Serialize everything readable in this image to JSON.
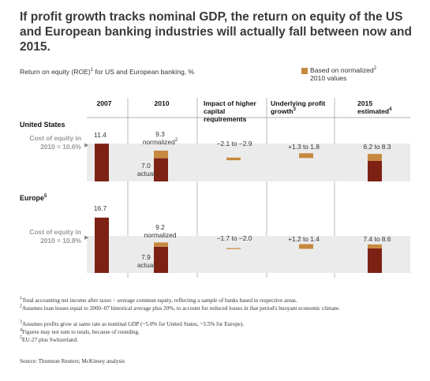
{
  "title": "If profit growth tracks nominal GDP, the return on equity of the US and European banking industries will actually fall between now and 2015.",
  "subtitle_main": "Return on equity (ROE)",
  "subtitle_sup": "1",
  "subtitle_rest": " for US and European banking, %",
  "legend": {
    "line1": "Based on normalized",
    "sup": "2",
    "line2": "2010 values"
  },
  "colors": {
    "actual": "#7d2115",
    "normalized": "#c7893f",
    "band": "#ebebeb",
    "divider": "#9a9a9a"
  },
  "columns": [
    {
      "label": "2007",
      "sup": ""
    },
    {
      "label": "2010",
      "sup": ""
    },
    {
      "label": "Impact of higher capital requirements",
      "sup": ""
    },
    {
      "label": "Underlying profit growth",
      "sup": "3"
    },
    {
      "label": "2015 estimated",
      "sup": "4"
    }
  ],
  "chart_data": {
    "type": "bar",
    "unit": "%",
    "regions": [
      {
        "name": "United States",
        "sup": "",
        "cost_of_equity_label": "Cost of equity in 2010 = 10.6%",
        "cost_of_equity": 10.6,
        "roe_2007": 11.4,
        "roe_2010_normalized": 9.3,
        "roe_2010_actual": 7.0,
        "capital_impact": [
          -2.9,
          -2.1
        ],
        "profit_growth": [
          1.3,
          1.8
        ],
        "roe_2015": [
          6.2,
          8.3
        ],
        "labels": {
          "y2007": "11.4",
          "normalized_value": "9.3",
          "normalized_word": "normalized",
          "normalized_sup": "2",
          "actual_value": "7.0",
          "actual_word": "actual",
          "capital": "−2.1 to −2.9",
          "growth": "+1.3 to 1.8",
          "estimated": "6.2 to 8.3"
        }
      },
      {
        "name": "Europe",
        "sup": "5",
        "cost_of_equity_label": "Cost of equity in 2010 = 10.8%",
        "cost_of_equity": 10.8,
        "roe_2007": 16.7,
        "roe_2010_normalized": 9.2,
        "roe_2010_actual": 7.9,
        "capital_impact": [
          -2.0,
          -1.7
        ],
        "profit_growth": [
          1.2,
          1.4
        ],
        "roe_2015": [
          7.4,
          8.6
        ],
        "labels": {
          "y2007": "16.7",
          "normalized_value": "9.2",
          "normalized_word": "normalized",
          "normalized_sup": "",
          "actual_value": "7.9",
          "actual_word": "actual",
          "capital": "−1.7 to −2.0",
          "growth": "+1.2 to 1.4",
          "estimated": "7.4 to 8.6"
        }
      }
    ]
  },
  "footnotes": [
    {
      "num": "1",
      "text": "Total accounting net income after taxes ÷ average common equity, reflecting a sample of banks based in respective areas."
    },
    {
      "num": "2",
      "text": "Assumes loan losses equal to 2000–07 historical average plus 20%, to account for reduced losses in that period's buoyant economic climate."
    },
    {
      "num": "3",
      "text": "Assumes profits grow at same rate as nominal GDP (~5.0% for United States, ~3.5% for Europe)."
    },
    {
      "num": "4",
      "text": "Figures may not sum to totals, because of rounding."
    },
    {
      "num": "5",
      "text": "EU-27 plus Switzerland."
    }
  ],
  "source": "Source: Thomson Reuters; McKinsey analysis"
}
